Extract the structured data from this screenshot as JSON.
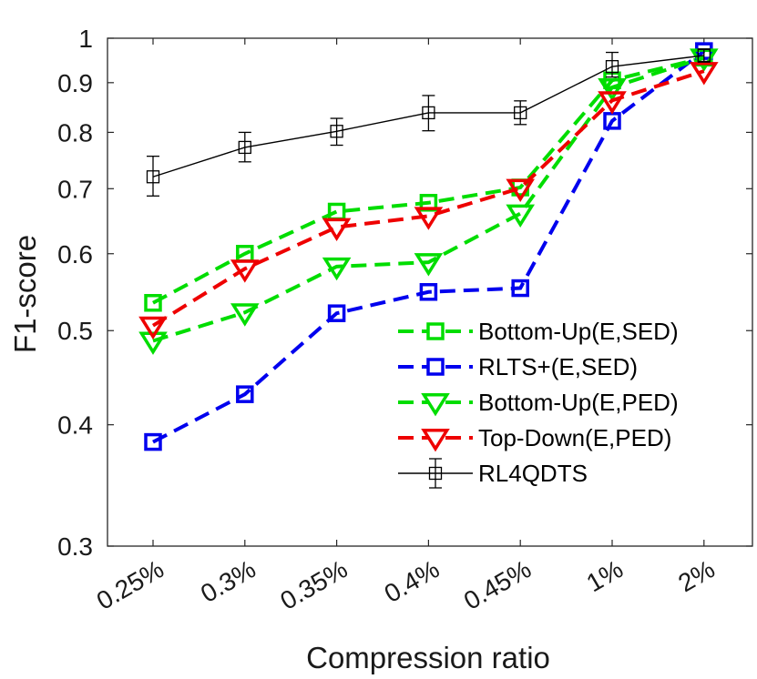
{
  "chart_data": {
    "type": "line",
    "title": "",
    "xlabel": "Compression ratio",
    "ylabel": "F1-score",
    "yscale": "log",
    "ylim": [
      0.3,
      1
    ],
    "yticks": [
      0.3,
      0.4,
      0.5,
      0.6,
      0.7,
      0.8,
      0.9,
      1
    ],
    "ytick_labels": [
      "0.3",
      "0.4",
      "0.5",
      "0.6",
      "0.7",
      "0.8",
      "0.9",
      "1"
    ],
    "categories": [
      "0.25%",
      "0.3%",
      "0.35%",
      "0.4%",
      "0.45%",
      "1%",
      "2%"
    ],
    "legend_position": "bottom-right",
    "series": [
      {
        "name": "Bottom-Up(E,SED)",
        "color": "#00dd00",
        "linestyle": "dashed",
        "marker": "square",
        "values": [
          0.534,
          0.6,
          0.663,
          0.677,
          0.702,
          0.905,
          0.955
        ]
      },
      {
        "name": "RLTS+(E,SED)",
        "color": "#0000ee",
        "linestyle": "dashed",
        "marker": "square",
        "values": [
          0.384,
          0.43,
          0.521,
          0.548,
          0.553,
          0.822,
          0.97
        ]
      },
      {
        "name": "Bottom-Up(E,PED)",
        "color": "#00dd00",
        "linestyle": "dashed",
        "marker": "triangle-down",
        "values": [
          0.488,
          0.522,
          0.582,
          0.588,
          0.66,
          0.89,
          0.955
        ]
      },
      {
        "name": "Top-Down(E,PED)",
        "color": "#ee0000",
        "linestyle": "dashed",
        "marker": "triangle-down",
        "values": [
          0.506,
          0.579,
          0.639,
          0.656,
          0.701,
          0.863,
          0.925
        ]
      },
      {
        "name": "RL4QDTS",
        "color": "#000000",
        "linestyle": "solid",
        "marker": "square",
        "errorbars": true,
        "values": [
          0.72,
          0.772,
          0.802,
          0.838,
          0.838,
          0.935,
          0.96
        ],
        "error_low": [
          0.688,
          0.746,
          0.776,
          0.803,
          0.815,
          0.912,
          0.945
        ],
        "error_high": [
          0.756,
          0.8,
          0.827,
          0.873,
          0.862,
          0.967,
          0.975
        ]
      }
    ]
  }
}
